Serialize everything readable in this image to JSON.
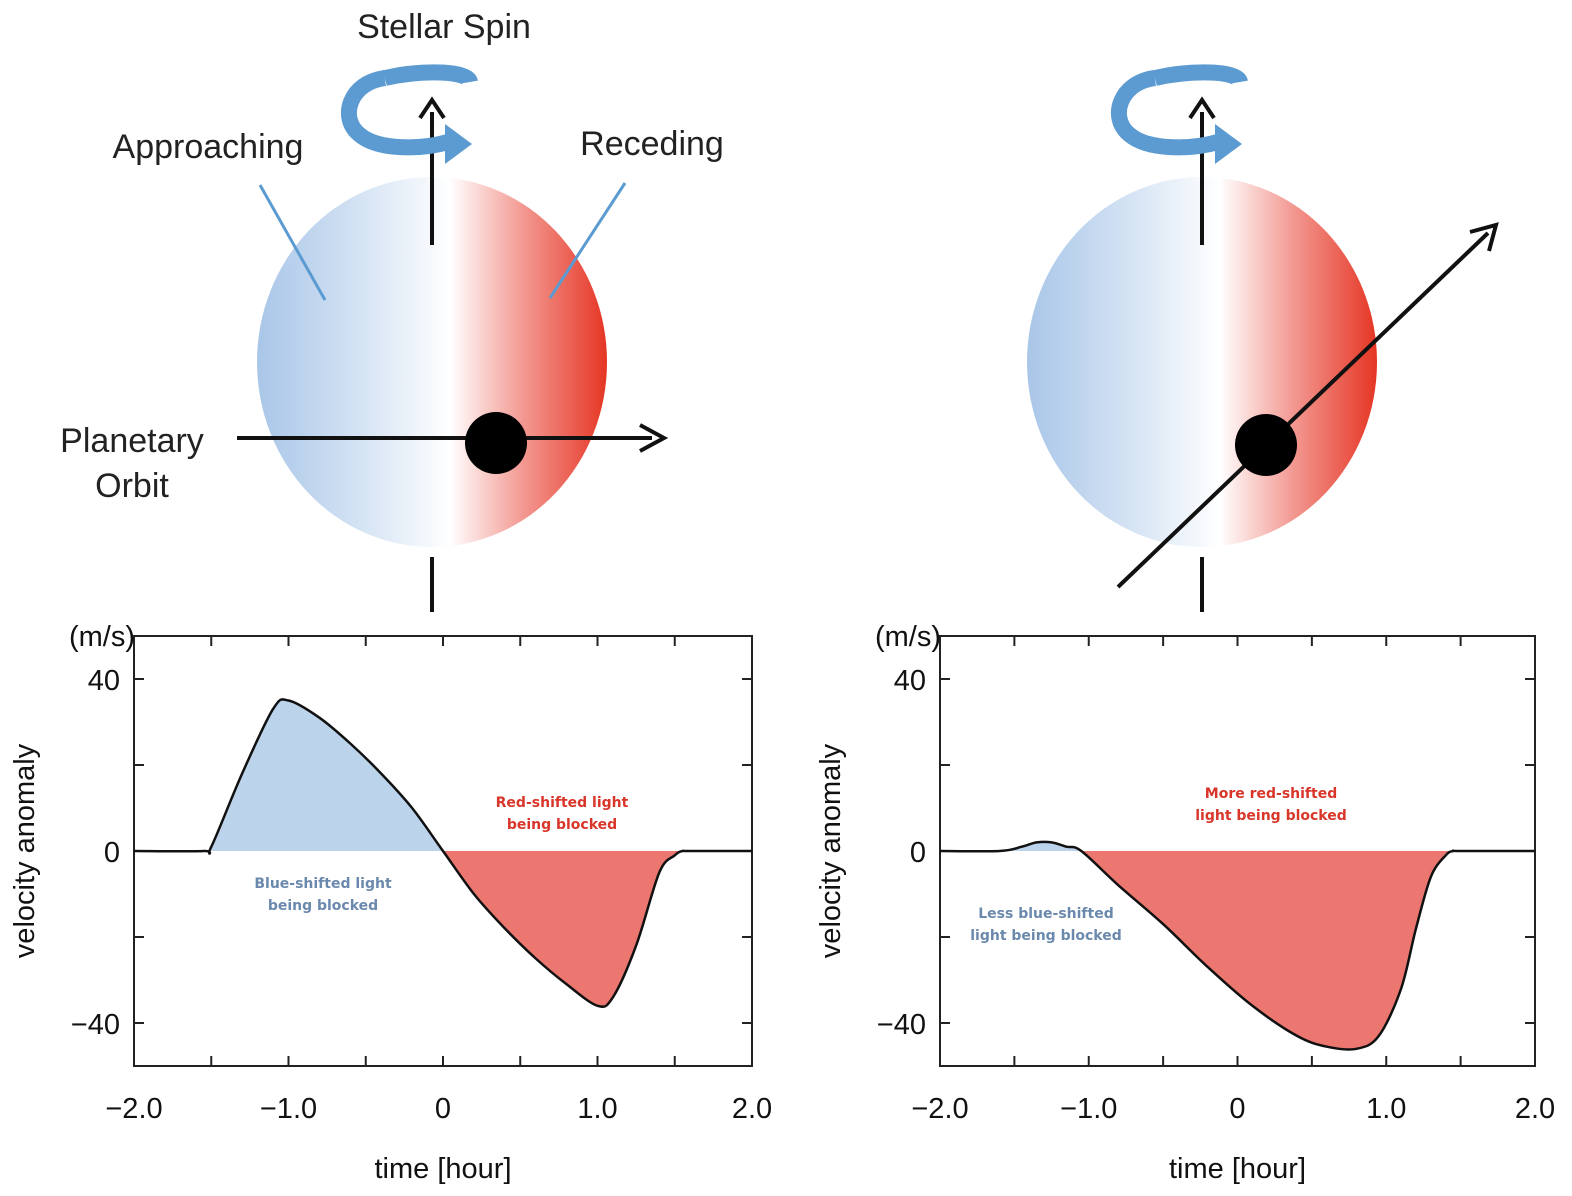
{
  "diagram": {
    "stellar_spin_label": "Stellar Spin",
    "approaching_label": "Approaching",
    "receding_label": "Receding",
    "planetary_orbit_label_line1": "Planetary",
    "planetary_orbit_label_line2": "Orbit"
  },
  "colors": {
    "blue_shift": "#a9c6e8",
    "red_shift": "#e53220",
    "blue_fill": "#bcd3ec",
    "red_fill": "#ec7770",
    "blue_note": "#6b89ad",
    "red_note": "#d9362a",
    "spin_arrow": "#5c9bd1"
  },
  "chart_data": [
    {
      "type": "area",
      "xlabel": "time [hour]",
      "ylabel": "velocity anomaly",
      "unit_label": "(m/s)",
      "xlim": [
        -2.0,
        2.0
      ],
      "ylim": [
        -50,
        50
      ],
      "x_ticks": [
        "−2.0",
        "−1.0",
        "0",
        "1.0",
        "2.0"
      ],
      "y_ticks": [
        "40",
        "0",
        "−40"
      ],
      "y_tick_values": [
        40,
        0,
        -40
      ],
      "series": [
        {
          "x": [
            -2.0,
            -1.55,
            -1.5,
            -1.3,
            -1.1,
            -1.0,
            -0.8,
            -0.6,
            -0.4,
            -0.2,
            0.0,
            0.2,
            0.4,
            0.6,
            0.8,
            1.0,
            1.1,
            1.25,
            1.4,
            1.5,
            1.55,
            1.6,
            2.0
          ],
          "y": [
            0,
            0,
            1,
            18,
            33,
            35,
            31,
            25,
            18,
            10,
            0,
            -10,
            -18,
            -25,
            -31,
            -36,
            -34,
            -22,
            -5,
            -1,
            0,
            0,
            0
          ]
        }
      ],
      "annotations": [
        {
          "text_line1": "Blue-shifted light",
          "text_line2": "being blocked"
        },
        {
          "text_line1": "Red-shifted light",
          "text_line2": "being blocked"
        }
      ]
    },
    {
      "type": "area",
      "xlabel": "time [hour]",
      "ylabel": "velocity anomaly",
      "unit_label": "(m/s)",
      "xlim": [
        -2.0,
        2.0
      ],
      "ylim": [
        -50,
        50
      ],
      "x_ticks": [
        "−2.0",
        "−1.0",
        "0",
        "1.0",
        "2.0"
      ],
      "y_ticks": [
        "40",
        "0",
        "−40"
      ],
      "y_tick_values": [
        40,
        0,
        -40
      ],
      "series": [
        {
          "x": [
            -2.0,
            -1.6,
            -1.45,
            -1.35,
            -1.25,
            -1.15,
            -1.05,
            -0.8,
            -0.5,
            -0.2,
            0.1,
            0.4,
            0.6,
            0.8,
            0.95,
            1.1,
            1.2,
            1.3,
            1.4,
            1.45,
            1.5,
            2.0
          ],
          "y": [
            0,
            0,
            1,
            2,
            2,
            1,
            0,
            -8,
            -17,
            -27,
            -36,
            -43,
            -45.5,
            -46,
            -43,
            -32,
            -18,
            -6,
            -1,
            0,
            0,
            0
          ]
        }
      ],
      "annotations": [
        {
          "text_line1": "Less blue-shifted",
          "text_line2": "light being blocked"
        },
        {
          "text_line1": "More red-shifted",
          "text_line2": "light being blocked"
        }
      ]
    }
  ]
}
